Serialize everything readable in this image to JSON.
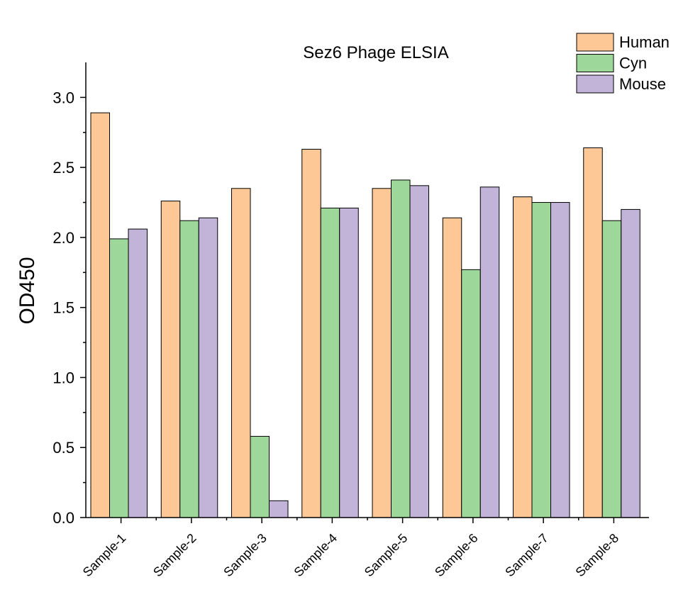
{
  "chart_data": {
    "type": "bar",
    "title": "Sez6 Phage ELSIA",
    "xlabel": "",
    "ylabel": "OD450",
    "ylim": [
      0,
      3.25
    ],
    "yticks": [
      "0.0",
      "0.5",
      "1.0",
      "1.5",
      "2.0",
      "2.5",
      "3.0"
    ],
    "categories": [
      "Sample-1",
      "Sample-2",
      "Sample-3",
      "Sample-4",
      "Sample-5",
      "Sample-6",
      "Sample-7",
      "Sample-8"
    ],
    "series": [
      {
        "name": "Human",
        "color": "#FDC895",
        "values": [
          2.89,
          2.26,
          2.35,
          2.63,
          2.35,
          2.14,
          2.29,
          2.64
        ]
      },
      {
        "name": "Cyn",
        "color": "#9DD89A",
        "values": [
          1.99,
          2.12,
          0.58,
          2.21,
          2.41,
          1.77,
          2.25,
          2.12
        ]
      },
      {
        "name": "Mouse",
        "color": "#C2B3D8",
        "values": [
          2.06,
          2.14,
          0.12,
          2.21,
          2.37,
          2.36,
          2.25,
          2.2
        ]
      }
    ],
    "legend": "top-right",
    "grid": false
  }
}
